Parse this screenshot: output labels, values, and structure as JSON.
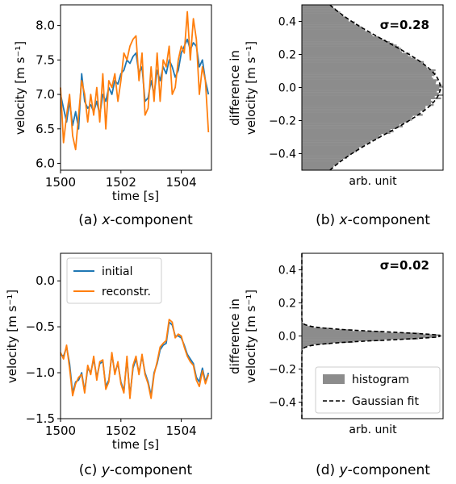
{
  "chart_data": [
    {
      "id": "a",
      "type": "line",
      "caption": {
        "prefix": "(a) ",
        "italic": "x",
        "suffix": "-component"
      },
      "xlabel": "time [s]",
      "ylabel": "velocity [m s⁻¹]",
      "xlim": [
        1500,
        1505
      ],
      "ylim": [
        5.9,
        8.3
      ],
      "xticks": [
        "1500",
        "1502",
        "1504"
      ],
      "yticks": [
        "6.0",
        "6.5",
        "7.0",
        "7.5",
        "8.0"
      ],
      "series": [
        {
          "name": "initial",
          "color": "#1f77b4",
          "x": [
            1500.0,
            1500.1,
            1500.2,
            1500.3,
            1500.4,
            1500.5,
            1500.6,
            1500.7,
            1500.8,
            1500.9,
            1501.0,
            1501.1,
            1501.2,
            1501.3,
            1501.4,
            1501.5,
            1501.6,
            1501.7,
            1501.8,
            1501.9,
            1502.0,
            1502.1,
            1502.2,
            1502.3,
            1502.4,
            1502.5,
            1502.6,
            1502.7,
            1502.8,
            1502.9,
            1503.0,
            1503.1,
            1503.2,
            1503.3,
            1503.4,
            1503.5,
            1503.6,
            1503.7,
            1503.8,
            1503.9,
            1504.0,
            1504.1,
            1504.2,
            1504.3,
            1504.4,
            1504.5,
            1504.6,
            1504.7,
            1504.8,
            1504.9
          ],
          "y": [
            7.0,
            6.8,
            6.6,
            6.9,
            6.55,
            6.75,
            6.5,
            7.3,
            6.9,
            6.8,
            6.85,
            6.75,
            6.9,
            6.7,
            7.0,
            6.9,
            7.1,
            7.0,
            7.2,
            7.15,
            7.3,
            7.35,
            7.5,
            7.45,
            7.55,
            7.6,
            7.3,
            7.4,
            6.9,
            6.95,
            7.2,
            7.0,
            7.35,
            7.2,
            7.4,
            7.3,
            7.5,
            7.4,
            7.25,
            7.35,
            7.6,
            7.7,
            7.8,
            7.65,
            7.75,
            7.7,
            7.4,
            7.5,
            7.2,
            7.0
          ]
        },
        {
          "name": "reconstr.",
          "color": "#ff7f0e",
          "x": [
            1500.0,
            1500.1,
            1500.2,
            1500.3,
            1500.4,
            1500.5,
            1500.6,
            1500.7,
            1500.8,
            1500.9,
            1501.0,
            1501.1,
            1501.2,
            1501.3,
            1501.4,
            1501.5,
            1501.6,
            1501.7,
            1501.8,
            1501.9,
            1502.0,
            1502.1,
            1502.2,
            1502.3,
            1502.4,
            1502.5,
            1502.6,
            1502.7,
            1502.8,
            1502.9,
            1503.0,
            1503.1,
            1503.2,
            1503.3,
            1503.4,
            1503.5,
            1503.6,
            1503.7,
            1503.8,
            1503.9,
            1504.0,
            1504.1,
            1504.2,
            1504.3,
            1504.4,
            1504.5,
            1504.6,
            1504.7,
            1504.8,
            1504.9
          ],
          "y": [
            7.1,
            6.3,
            6.7,
            7.0,
            6.4,
            6.2,
            6.7,
            7.2,
            7.0,
            6.6,
            7.0,
            6.7,
            7.1,
            6.6,
            7.3,
            6.5,
            7.2,
            7.1,
            7.3,
            6.9,
            7.2,
            7.6,
            7.5,
            7.7,
            7.8,
            7.85,
            7.2,
            7.6,
            6.7,
            6.8,
            7.4,
            6.9,
            7.6,
            6.9,
            7.5,
            7.4,
            7.7,
            7.0,
            7.1,
            7.5,
            7.7,
            7.6,
            8.2,
            7.5,
            8.1,
            7.8,
            7.0,
            7.4,
            7.2,
            6.45
          ]
        }
      ]
    },
    {
      "id": "b",
      "type": "histogram",
      "caption": {
        "prefix": "(b) ",
        "italic": "x",
        "suffix": "-component"
      },
      "xlabel": "arb. unit",
      "ylabel_line1": "difference in",
      "ylabel_line2": "velocity [m s⁻¹]",
      "ylim": [
        -0.5,
        0.5
      ],
      "yticks": [
        "−0.4",
        "−0.2",
        "0.0",
        "0.2",
        "0.4"
      ],
      "annotation": "σ=0.28",
      "sigma": 0.28,
      "bar_color": "#8c8c8c",
      "fit_color": "#000000"
    },
    {
      "id": "c",
      "type": "line",
      "caption": {
        "prefix": "(c) ",
        "italic": "y",
        "suffix": "-component"
      },
      "xlabel": "time [s]",
      "ylabel": "velocity [m s⁻¹]",
      "xlim": [
        1500,
        1505
      ],
      "ylim": [
        -1.5,
        0.3
      ],
      "xticks": [
        "1500",
        "1502",
        "1504"
      ],
      "yticks": [
        "−1.5",
        "−1.0",
        "−0.5",
        "0.0"
      ],
      "legend": {
        "position": "upper-left",
        "entries": [
          "initial",
          "reconstr."
        ]
      },
      "series": [
        {
          "name": "initial",
          "color": "#1f77b4",
          "x": [
            1500.0,
            1500.1,
            1500.2,
            1500.3,
            1500.4,
            1500.5,
            1500.6,
            1500.7,
            1500.8,
            1500.9,
            1501.0,
            1501.1,
            1501.2,
            1501.3,
            1501.4,
            1501.5,
            1501.6,
            1501.7,
            1501.8,
            1501.9,
            1502.0,
            1502.1,
            1502.2,
            1502.3,
            1502.4,
            1502.5,
            1502.6,
            1502.7,
            1502.8,
            1502.9,
            1503.0,
            1503.1,
            1503.2,
            1503.3,
            1503.4,
            1503.5,
            1503.6,
            1503.7,
            1503.8,
            1503.9,
            1504.0,
            1504.1,
            1504.2,
            1504.3,
            1504.4,
            1504.5,
            1504.6,
            1504.7,
            1504.8,
            1504.9
          ],
          "y": [
            -0.8,
            -0.82,
            -0.72,
            -0.9,
            -1.22,
            -1.1,
            -1.08,
            -1.0,
            -1.2,
            -0.95,
            -1.0,
            -0.85,
            -1.05,
            -0.9,
            -0.88,
            -1.15,
            -1.08,
            -0.8,
            -1.0,
            -0.9,
            -1.1,
            -1.2,
            -0.85,
            -1.25,
            -0.95,
            -0.85,
            -1.0,
            -0.82,
            -1.0,
            -1.1,
            -1.25,
            -1.0,
            -0.9,
            -0.75,
            -0.7,
            -0.68,
            -0.45,
            -0.48,
            -0.6,
            -0.6,
            -0.62,
            -0.7,
            -0.8,
            -0.85,
            -0.9,
            -1.05,
            -1.1,
            -0.95,
            -1.1,
            -1.0
          ]
        },
        {
          "name": "reconstr.",
          "color": "#ff7f0e",
          "x": [
            1500.0,
            1500.1,
            1500.2,
            1500.3,
            1500.4,
            1500.5,
            1500.6,
            1500.7,
            1500.8,
            1500.9,
            1501.0,
            1501.1,
            1501.2,
            1501.3,
            1501.4,
            1501.5,
            1501.6,
            1501.7,
            1501.8,
            1501.9,
            1502.0,
            1502.1,
            1502.2,
            1502.3,
            1502.4,
            1502.5,
            1502.6,
            1502.7,
            1502.8,
            1502.9,
            1503.0,
            1503.1,
            1503.2,
            1503.3,
            1503.4,
            1503.5,
            1503.6,
            1503.7,
            1503.8,
            1503.9,
            1504.0,
            1504.1,
            1504.2,
            1504.3,
            1504.4,
            1504.5,
            1504.6,
            1504.7,
            1504.8,
            1504.9
          ],
          "y": [
            -0.78,
            -0.85,
            -0.7,
            -0.95,
            -1.25,
            -1.12,
            -1.05,
            -1.02,
            -1.22,
            -0.92,
            -1.02,
            -0.82,
            -1.08,
            -0.88,
            -0.86,
            -1.18,
            -1.1,
            -0.78,
            -1.02,
            -0.88,
            -1.12,
            -1.22,
            -0.82,
            -1.28,
            -0.92,
            -0.82,
            -1.02,
            -0.8,
            -1.02,
            -1.12,
            -1.28,
            -1.02,
            -0.88,
            -0.72,
            -0.68,
            -0.65,
            -0.42,
            -0.45,
            -0.62,
            -0.58,
            -0.6,
            -0.72,
            -0.82,
            -0.88,
            -0.92,
            -1.08,
            -1.15,
            -0.98,
            -1.12,
            -1.02
          ]
        }
      ]
    },
    {
      "id": "d",
      "type": "histogram",
      "caption": {
        "prefix": "(d) ",
        "italic": "y",
        "suffix": "-component"
      },
      "xlabel": "arb. unit",
      "ylabel_line1": "difference in",
      "ylabel_line2": "velocity [m s⁻¹]",
      "ylim": [
        -0.5,
        0.5
      ],
      "yticks": [
        "−0.4",
        "−0.2",
        "0.0",
        "0.2",
        "0.4"
      ],
      "annotation": "σ=0.02",
      "sigma": 0.025,
      "bar_color": "#8c8c8c",
      "fit_color": "#000000",
      "legend": {
        "position": "lower-right",
        "entries": [
          "histogram",
          "Gaussian fit"
        ]
      }
    }
  ]
}
